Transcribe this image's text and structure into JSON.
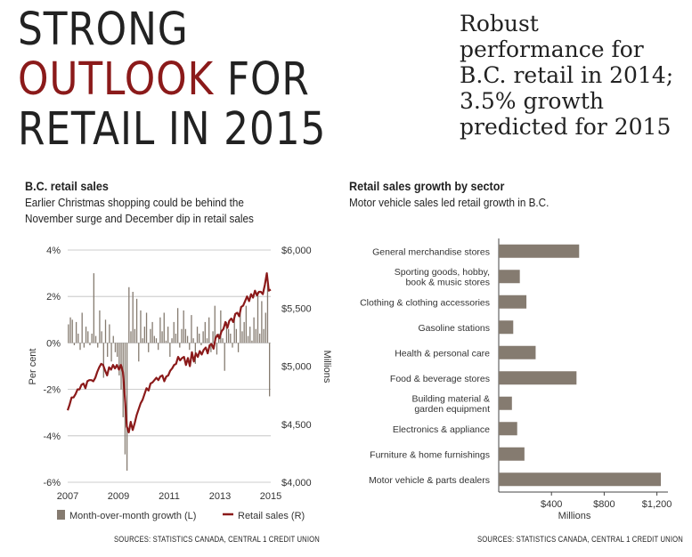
{
  "headline": {
    "line1": "STRONG",
    "line2_accent": "OUTLOOK",
    "line2_rest": " FOR",
    "line3": "RETAIL IN 2015"
  },
  "subheadline": [
    "Robust",
    "performance for",
    "B.C. retail in 2014;",
    "3.5% growth",
    "predicted for 2015"
  ],
  "colors": {
    "accent": "#8b1a1a",
    "bar": "#857b70"
  },
  "chart_data": [
    {
      "type": "bar+line",
      "title": "B.C. retail sales",
      "subtitle": [
        "Earlier Christmas shopping could be behind  the",
        "November surge and December dip in retail sales"
      ],
      "ylabel_left": "Per cent",
      "ylabel_right": "Millions",
      "ylim_left": [
        -6,
        4
      ],
      "ylim_right": [
        4000,
        6000
      ],
      "yticks_left": [
        "4%",
        "2%",
        "0%",
        "-2%",
        "-4%",
        "-6%"
      ],
      "yticks_right": [
        "$6,000",
        "$5,500",
        "$5,000",
        "$4,500",
        "$4,000"
      ],
      "xticks": [
        "2007",
        "2009",
        "2011",
        "2013",
        "2015"
      ],
      "x_range": [
        2007,
        2015
      ],
      "legend": [
        "Month-over-month growth (L)",
        "Retail sales (R)"
      ],
      "bar_series": {
        "name": "Month-over-month growth (L)",
        "values": [
          0.8,
          1.1,
          1.0,
          -0.1,
          0.9,
          0.4,
          -0.3,
          1.3,
          -0.2,
          0.7,
          0.5,
          -0.1,
          0.4,
          3.0,
          0.3,
          -0.2,
          1.4,
          0.5,
          -1.5,
          1.0,
          -0.6,
          0.8,
          -0.8,
          0.3,
          -0.4,
          -0.6,
          -1.4,
          -2.0,
          -3.2,
          -4.8,
          -5.5,
          2.4,
          0.5,
          2.2,
          0.6,
          1.9,
          -0.8,
          1.4,
          0.2,
          0.7,
          1.3,
          -0.4,
          0.6,
          0.9,
          0.3,
          0.2,
          -0.3,
          1.1,
          0.5,
          1.3,
          0.1,
          0.7,
          -0.6,
          0.2,
          0.9,
          0.4,
          1.5,
          -0.2,
          0.6,
          1.4,
          0.6,
          0.3,
          -0.3,
          1.2,
          0.2,
          -0.9,
          0.7,
          0.4,
          -0.1,
          0.5,
          0.9,
          0.2,
          1.1,
          -0.4,
          0.5,
          1.6,
          -0.5,
          0.4,
          1.4,
          0.2,
          -1.2,
          0.9,
          0.6,
          0.4,
          -0.2,
          1.2,
          0.6,
          -0.4,
          1.4,
          0.5,
          0.9,
          1.6,
          0.3,
          0.7,
          0.1,
          1.1,
          0.6,
          2.2,
          0.4,
          1.8,
          0.6,
          1.3,
          2.5,
          -2.3
        ]
      },
      "line_series": {
        "name": "Retail sales (R)",
        "values": [
          4620,
          4670,
          4730,
          4730,
          4760,
          4800,
          4800,
          4840,
          4850,
          4810,
          4870,
          4880,
          4880,
          4870,
          4900,
          4950,
          4990,
          5020,
          5010,
          4960,
          4920,
          4990,
          4970,
          5010,
          4980,
          5010,
          4970,
          5010,
          4950,
          4730,
          4480,
          4430,
          4520,
          4450,
          4510,
          4580,
          4630,
          4680,
          4710,
          4760,
          4810,
          4790,
          4850,
          4860,
          4880,
          4900,
          4880,
          4910,
          4920,
          4870,
          4910,
          4920,
          4960,
          4980,
          5010,
          5020,
          5080,
          5050,
          5070,
          5080,
          5010,
          5070,
          5000,
          5120,
          5040,
          5110,
          5080,
          5130,
          5100,
          5140,
          5160,
          5110,
          5180,
          5190,
          5150,
          5240,
          5270,
          5240,
          5300,
          5320,
          5380,
          5330,
          5390,
          5410,
          5380,
          5450,
          5460,
          5430,
          5510,
          5520,
          5560,
          5600,
          5560,
          5620,
          5590,
          5650,
          5610,
          5640,
          5640,
          5620,
          5700,
          5800,
          5650,
          5660
        ]
      }
    },
    {
      "type": "bar",
      "orientation": "horizontal",
      "title": "Retail sales growth by sector",
      "subtitle": "Motor vehicle sales led retail growth in B.C.",
      "xlabel": "Millions",
      "xlim": [
        0,
        1250
      ],
      "xticks": [
        "$400",
        "$800",
        "$1,200"
      ],
      "xtick_values": [
        400,
        800,
        1200
      ],
      "categories": [
        [
          "General merchandise stores"
        ],
        [
          "Sporting goods, hobby,",
          "book & music stores"
        ],
        [
          "Clothing & clothing accessories"
        ],
        [
          "Gasoline stations"
        ],
        [
          "Health & personal care"
        ],
        [
          "Food & beverage stores"
        ],
        [
          "Building material &",
          "garden equipment"
        ],
        [
          "Electronics & appliance"
        ],
        [
          "Furniture & home furnishings"
        ],
        [
          "Motor vehicle & parts dealers"
        ]
      ],
      "values": [
        610,
        160,
        210,
        110,
        280,
        590,
        100,
        140,
        195,
        1230
      ]
    }
  ],
  "sources": {
    "left": "SOURCES: STATISTICS CANADA, CENTRAL 1 CREDIT UNION",
    "right": "SOURCES: STATISTICS CANADA, CENTRAL 1 CREDIT UNION"
  }
}
